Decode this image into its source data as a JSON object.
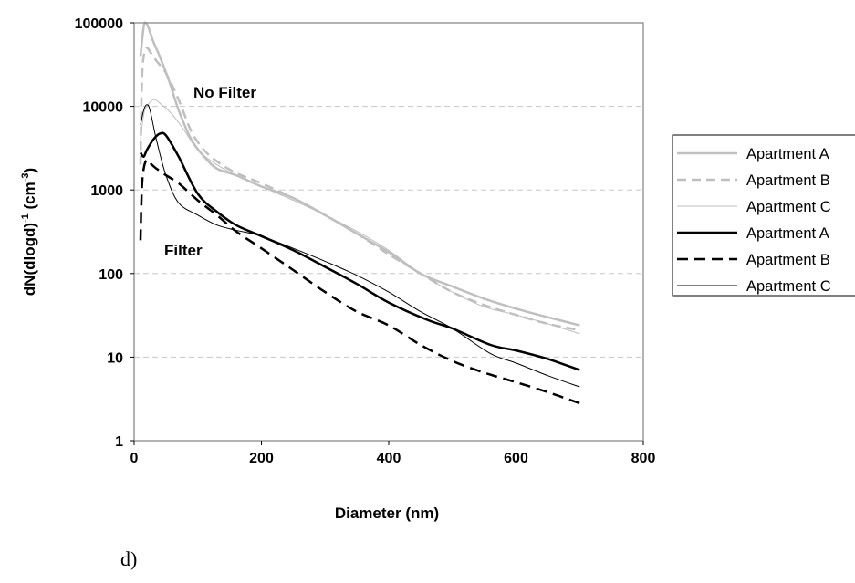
{
  "chart_data": {
    "type": "line",
    "xlabel": "Diameter (nm)",
    "ylabel_main": "dN(dlogd)",
    "ylabel_sup1": "-1",
    "ylabel_unit_open": " (cm",
    "ylabel_sup2": "-3",
    "ylabel_unit_close": ")",
    "xlim": [
      0,
      800
    ],
    "ylim": [
      1,
      100000
    ],
    "yscale": "log",
    "x_ticks": [
      "0",
      "200",
      "400",
      "600",
      "800"
    ],
    "y_ticks": [
      "1",
      "10",
      "100",
      "1000",
      "10000",
      "100000"
    ],
    "grid": "horizontal dashed",
    "legend_position": "right",
    "annotations": [
      "No Filter",
      "Filter"
    ],
    "caption": "d)",
    "series": [
      {
        "name": "Apartment A",
        "color": "#bfbfbf",
        "width": 2.5,
        "dash": "",
        "points": [
          [
            10,
            40000
          ],
          [
            15,
            90000
          ],
          [
            18,
            100000
          ],
          [
            22,
            90000
          ],
          [
            30,
            60000
          ],
          [
            40,
            40000
          ],
          [
            55,
            20000
          ],
          [
            70,
            9000
          ],
          [
            90,
            4000
          ],
          [
            110,
            2500
          ],
          [
            130,
            1800
          ],
          [
            160,
            1500
          ],
          [
            200,
            1100
          ],
          [
            250,
            800
          ],
          [
            300,
            500
          ],
          [
            350,
            300
          ],
          [
            400,
            180
          ],
          [
            450,
            100
          ],
          [
            500,
            70
          ],
          [
            550,
            50
          ],
          [
            600,
            38
          ],
          [
            650,
            30
          ],
          [
            700,
            24
          ]
        ]
      },
      {
        "name": "Apartment B",
        "color": "#bfbfbf",
        "width": 2.5,
        "dash": "10,6",
        "points": [
          [
            10,
            2000
          ],
          [
            12,
            18000
          ],
          [
            15,
            40000
          ],
          [
            20,
            50000
          ],
          [
            25,
            45000
          ],
          [
            35,
            35000
          ],
          [
            50,
            25000
          ],
          [
            70,
            12000
          ],
          [
            90,
            5000
          ],
          [
            110,
            3000
          ],
          [
            130,
            2200
          ],
          [
            160,
            1600
          ],
          [
            200,
            1200
          ],
          [
            250,
            800
          ],
          [
            300,
            500
          ],
          [
            350,
            300
          ],
          [
            400,
            170
          ],
          [
            450,
            100
          ],
          [
            500,
            60
          ],
          [
            550,
            42
          ],
          [
            600,
            32
          ],
          [
            650,
            25
          ],
          [
            700,
            21
          ]
        ]
      },
      {
        "name": "Apartment C",
        "color": "#bfbfbf",
        "width": 1,
        "dash": "",
        "points": [
          [
            10,
            4000
          ],
          [
            15,
            8000
          ],
          [
            20,
            10000
          ],
          [
            30,
            12000
          ],
          [
            40,
            11000
          ],
          [
            60,
            8000
          ],
          [
            80,
            5000
          ],
          [
            100,
            3000
          ],
          [
            130,
            2000
          ],
          [
            160,
            1500
          ],
          [
            200,
            1100
          ],
          [
            250,
            750
          ],
          [
            300,
            500
          ],
          [
            350,
            320
          ],
          [
            400,
            190
          ],
          [
            450,
            100
          ],
          [
            500,
            60
          ],
          [
            550,
            40
          ],
          [
            600,
            32
          ],
          [
            650,
            25
          ],
          [
            700,
            19
          ]
        ]
      },
      {
        "name": "Apartment A",
        "color": "#000000",
        "width": 2.5,
        "dash": "",
        "points": [
          [
            10,
            2800
          ],
          [
            15,
            2500
          ],
          [
            20,
            3000
          ],
          [
            30,
            4000
          ],
          [
            40,
            4700
          ],
          [
            50,
            4500
          ],
          [
            70,
            2500
          ],
          [
            100,
            900
          ],
          [
            130,
            550
          ],
          [
            160,
            380
          ],
          [
            200,
            280
          ],
          [
            250,
            190
          ],
          [
            300,
            120
          ],
          [
            350,
            75
          ],
          [
            400,
            45
          ],
          [
            460,
            28
          ],
          [
            500,
            22
          ],
          [
            560,
            14
          ],
          [
            600,
            12
          ],
          [
            650,
            9.5
          ],
          [
            700,
            7
          ]
        ]
      },
      {
        "name": "Apartment B",
        "color": "#000000",
        "width": 2.5,
        "dash": "12,7",
        "points": [
          [
            10,
            250
          ],
          [
            12,
            1000
          ],
          [
            15,
            1800
          ],
          [
            20,
            2300
          ],
          [
            25,
            2100
          ],
          [
            35,
            1800
          ],
          [
            50,
            1500
          ],
          [
            70,
            1200
          ],
          [
            100,
            750
          ],
          [
            130,
            500
          ],
          [
            160,
            320
          ],
          [
            200,
            200
          ],
          [
            250,
            110
          ],
          [
            300,
            60
          ],
          [
            350,
            35
          ],
          [
            400,
            24
          ],
          [
            450,
            14
          ],
          [
            500,
            9
          ],
          [
            550,
            6.5
          ],
          [
            600,
            5
          ],
          [
            650,
            3.8
          ],
          [
            700,
            2.8
          ]
        ]
      },
      {
        "name": "Apartment C",
        "color": "#000000",
        "width": 1,
        "dash": "",
        "points": [
          [
            10,
            6000
          ],
          [
            15,
            9000
          ],
          [
            20,
            10500
          ],
          [
            25,
            9000
          ],
          [
            35,
            4000
          ],
          [
            50,
            1500
          ],
          [
            70,
            700
          ],
          [
            100,
            500
          ],
          [
            130,
            380
          ],
          [
            160,
            330
          ],
          [
            200,
            280
          ],
          [
            250,
            200
          ],
          [
            300,
            140
          ],
          [
            350,
            95
          ],
          [
            400,
            60
          ],
          [
            450,
            35
          ],
          [
            500,
            22
          ],
          [
            560,
            11
          ],
          [
            600,
            8.5
          ],
          [
            650,
            6
          ],
          [
            700,
            4.4
          ]
        ]
      }
    ]
  }
}
